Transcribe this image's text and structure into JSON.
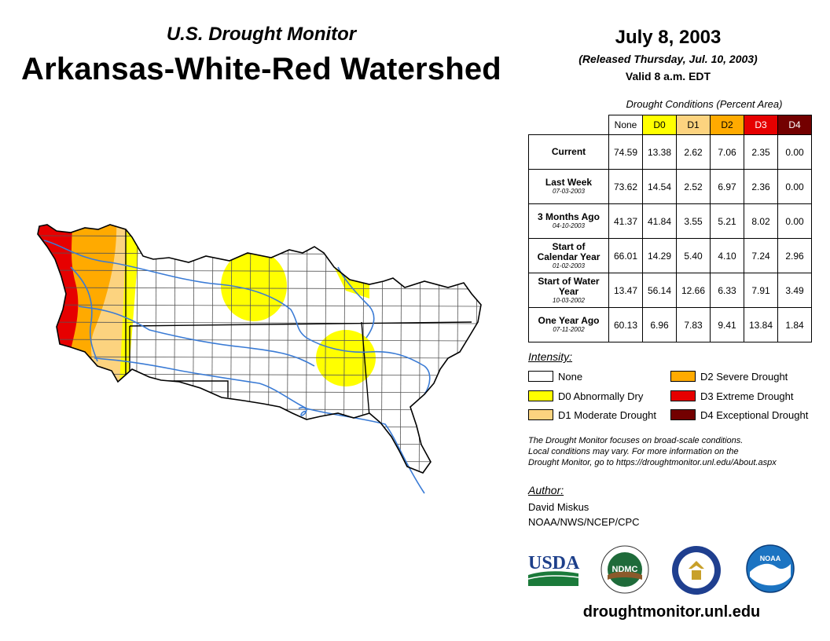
{
  "header": {
    "subtitle": "U.S. Drought Monitor",
    "title": "Arkansas-White-Red Watershed",
    "date": "July 8, 2003",
    "released": "(Released Thursday, Jul. 10, 2003)",
    "valid": "Valid 8 a.m. EDT"
  },
  "table": {
    "caption": "Drought Conditions (Percent Area)",
    "columns": [
      "None",
      "D0",
      "D1",
      "D2",
      "D3",
      "D4"
    ],
    "column_colors": [
      "#ffffff",
      "#ffff00",
      "#fcd37f",
      "#ffaa00",
      "#e60000",
      "#730000"
    ],
    "rows": [
      {
        "label": "Current",
        "date": "",
        "values": [
          "74.59",
          "13.38",
          "2.62",
          "7.06",
          "2.35",
          "0.00"
        ]
      },
      {
        "label": "Last Week",
        "date": "07-03-2003",
        "values": [
          "73.62",
          "14.54",
          "2.52",
          "6.97",
          "2.36",
          "0.00"
        ]
      },
      {
        "label": "3 Months Ago",
        "date": "04-10-2003",
        "values": [
          "41.37",
          "41.84",
          "3.55",
          "5.21",
          "8.02",
          "0.00"
        ]
      },
      {
        "label": "Start of Calendar Year",
        "date": "01-02-2003",
        "values": [
          "66.01",
          "14.29",
          "5.40",
          "4.10",
          "7.24",
          "2.96"
        ]
      },
      {
        "label": "Start of Water Year",
        "date": "10-03-2002",
        "values": [
          "13.47",
          "56.14",
          "12.66",
          "6.33",
          "7.91",
          "3.49"
        ]
      },
      {
        "label": "One Year Ago",
        "date": "07-11-2002",
        "values": [
          "60.13",
          "6.96",
          "7.83",
          "9.41",
          "13.84",
          "1.84"
        ]
      }
    ]
  },
  "legend": {
    "title": "Intensity:",
    "items": [
      {
        "label": "None",
        "color": "#ffffff"
      },
      {
        "label": "D0 Abnormally Dry",
        "color": "#ffff00"
      },
      {
        "label": "D1 Moderate Drought",
        "color": "#fcd37f"
      },
      {
        "label": "D2 Severe Drought",
        "color": "#ffaa00"
      },
      {
        "label": "D3 Extreme Drought",
        "color": "#e60000"
      },
      {
        "label": "D4 Exceptional Drought",
        "color": "#730000"
      }
    ]
  },
  "note": {
    "line1": "The Drought Monitor focuses on broad-scale conditions.",
    "line2": "Local conditions may vary. For more information on the",
    "line3": "Drought Monitor, go to https://droughtmonitor.unl.edu/About.aspx"
  },
  "author": {
    "label": "Author:",
    "name": "David Miskus",
    "org": "NOAA/NWS/NCEP/CPC"
  },
  "logos": {
    "usda": "USDA",
    "ndmc": "NDMC",
    "noaa": "NOAA"
  },
  "footer_url": "droughtmonitor.unl.edu",
  "map": {
    "region": "Arkansas-White-Red Watershed",
    "colors": {
      "border": "#000000",
      "river": "#3a7bd5",
      "county": "#555555"
    }
  }
}
